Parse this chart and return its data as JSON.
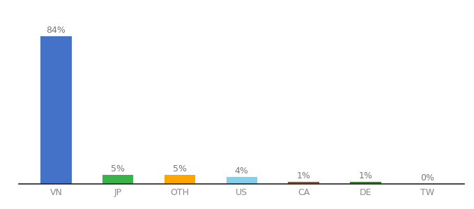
{
  "categories": [
    "VN",
    "JP",
    "OTH",
    "US",
    "CA",
    "DE",
    "TW"
  ],
  "values": [
    84,
    5,
    5,
    4,
    1,
    1,
    0
  ],
  "labels": [
    "84%",
    "5%",
    "5%",
    "4%",
    "1%",
    "1%",
    "0%"
  ],
  "bar_colors": [
    "#4472c8",
    "#3cb34a",
    "#ffa500",
    "#87ceeb",
    "#a0522d",
    "#2e8b22",
    "#cccccc"
  ],
  "background_color": "#ffffff",
  "ylim": [
    0,
    95
  ],
  "bar_width": 0.5,
  "label_color": "#777777",
  "tick_color": "#888888"
}
